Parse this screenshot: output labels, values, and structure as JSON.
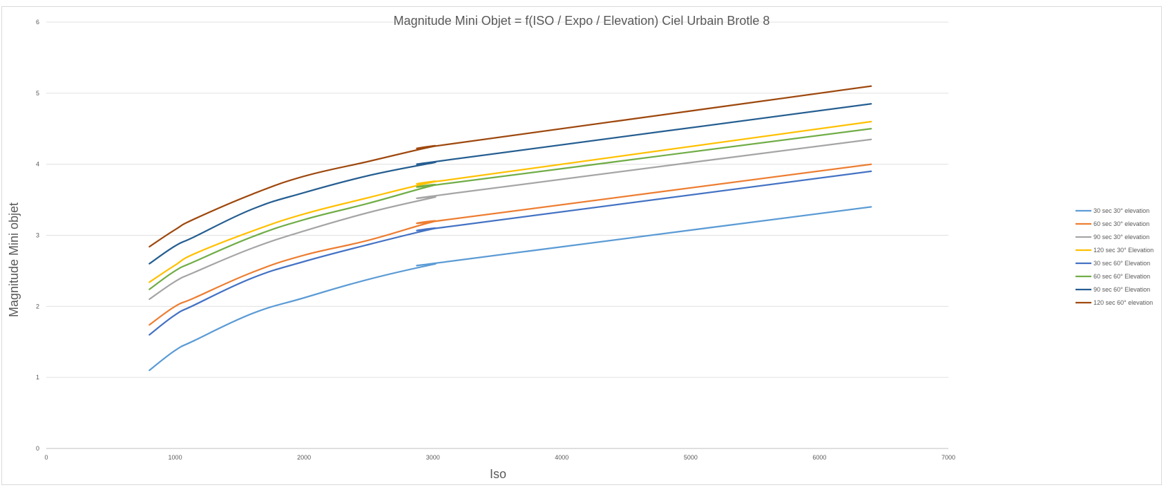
{
  "chart_data": {
    "type": "line",
    "title": "Magnitude Mini Objet = f(ISO / Expo / Elevation) Ciel Urbain Brotle 8",
    "xlabel": "Iso",
    "ylabel": "Magnitude Mini objet",
    "xlim": [
      0,
      7000
    ],
    "ylim": [
      0,
      6
    ],
    "xticks": [
      0,
      1000,
      2000,
      3000,
      4000,
      5000,
      6000,
      7000
    ],
    "xtick_labels": [
      "0",
      "1000",
      "2000",
      "3000",
      "4000",
      "5000",
      "6000",
      "7000"
    ],
    "yticks": [
      0,
      1,
      2,
      3,
      4,
      5,
      6
    ],
    "ytick_labels": [
      "0",
      "1",
      "2",
      "3",
      "4",
      "5",
      "6"
    ],
    "grid": "horizontal",
    "legend_position": "right",
    "x": [
      800,
      1000,
      1150,
      1600,
      2000,
      2500,
      3000,
      3200,
      6400
    ],
    "series": [
      {
        "name": "30 sec 30° elevation",
        "color": "#5b9bd5",
        "values": [
          1.1,
          1.38,
          1.52,
          1.9,
          2.12,
          2.38,
          2.59,
          2.65,
          3.4
        ]
      },
      {
        "name": "60 sec 30° elevation",
        "color": "#ed7d31",
        "values": [
          1.74,
          2.0,
          2.12,
          2.48,
          2.72,
          2.93,
          3.19,
          3.24,
          4.0
        ]
      },
      {
        "name": "90 sec 30° elevation",
        "color": "#a5a5a5",
        "values": [
          2.1,
          2.35,
          2.48,
          2.82,
          3.06,
          3.32,
          3.53,
          3.6,
          4.35
        ]
      },
      {
        "name": "120 sec 30° Elevation",
        "color": "#ffc000",
        "values": [
          2.34,
          2.58,
          2.74,
          3.06,
          3.3,
          3.53,
          3.75,
          3.8,
          4.6
        ]
      },
      {
        "name": "30 sec 60° Elevation",
        "color": "#4472c4",
        "values": [
          1.6,
          1.88,
          2.02,
          2.4,
          2.63,
          2.87,
          3.09,
          3.14,
          3.9
        ]
      },
      {
        "name": "60 sec 60° Elevation",
        "color": "#70ad47",
        "values": [
          2.24,
          2.5,
          2.63,
          2.98,
          3.22,
          3.45,
          3.7,
          3.75,
          4.5
        ]
      },
      {
        "name": "90 sec 60° Elevation",
        "color": "#255e91",
        "values": [
          2.6,
          2.85,
          2.98,
          3.37,
          3.6,
          3.84,
          4.02,
          4.08,
          4.85
        ]
      },
      {
        "name": "120 sec 60° elevation",
        "color": "#9e480e",
        "values": [
          2.84,
          3.08,
          3.23,
          3.58,
          3.83,
          4.04,
          4.25,
          4.3,
          5.1
        ]
      }
    ]
  }
}
